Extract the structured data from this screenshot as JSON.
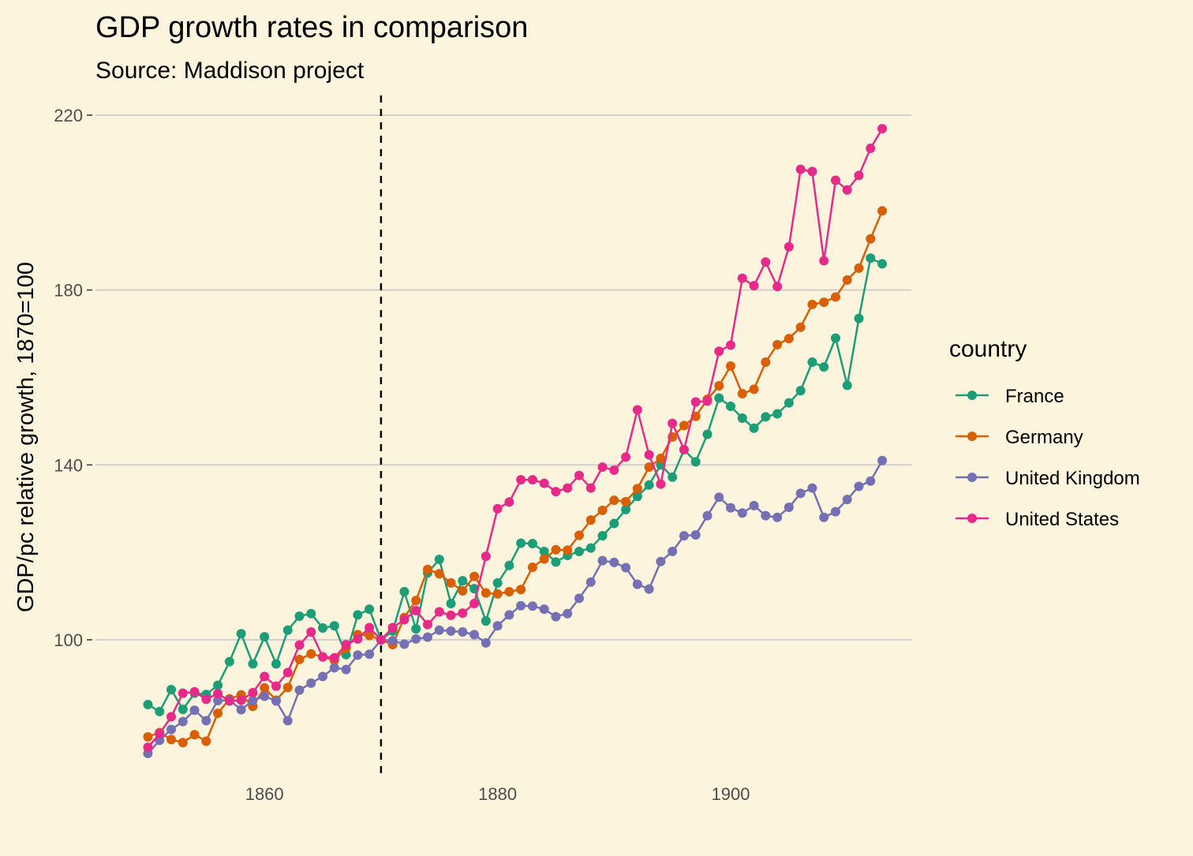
{
  "chart_data": {
    "type": "line",
    "title": "GDP growth rates in comparison",
    "subtitle": "Source: Maddison project",
    "xlabel": "",
    "ylabel": "GDP/pc relative growth, 1870=100",
    "xlim": [
      1845.5,
      1915.5
    ],
    "ylim": [
      69.5,
      224.5
    ],
    "xticks": [
      1860,
      1880,
      1900
    ],
    "yticks": [
      100,
      140,
      180,
      220
    ],
    "grid": "horizontal major lines",
    "reference_line": {
      "x": 1870,
      "style": "dashed"
    },
    "legend": {
      "title": "country",
      "position": "right"
    },
    "x": [
      1850,
      1851,
      1852,
      1853,
      1854,
      1855,
      1856,
      1857,
      1858,
      1859,
      1860,
      1861,
      1862,
      1863,
      1864,
      1865,
      1866,
      1867,
      1868,
      1869,
      1870,
      1871,
      1872,
      1873,
      1874,
      1875,
      1876,
      1877,
      1878,
      1879,
      1880,
      1881,
      1882,
      1883,
      1884,
      1885,
      1886,
      1887,
      1888,
      1889,
      1890,
      1891,
      1892,
      1893,
      1894,
      1895,
      1896,
      1897,
      1898,
      1899,
      1900,
      1901,
      1902,
      1903,
      1904,
      1905,
      1906,
      1907,
      1908,
      1909,
      1910,
      1911,
      1912,
      1913
    ],
    "series": [
      {
        "name": "France",
        "color": "#1b9e77",
        "values": [
          85.2,
          83.6,
          88.6,
          84.1,
          87.8,
          87.5,
          89.6,
          95.0,
          101.4,
          94.5,
          100.7,
          94.5,
          102.2,
          105.4,
          106.0,
          102.7,
          103.2,
          96.6,
          105.7,
          107.0,
          100.0,
          102.0,
          111.0,
          102.5,
          115.3,
          118.4,
          108.3,
          113.5,
          111.7,
          104.3,
          113.0,
          117.0,
          122.1,
          122.0,
          120.2,
          117.8,
          119.3,
          120.2,
          121.0,
          123.8,
          126.6,
          129.8,
          132.8,
          135.4,
          140.0,
          137.2,
          143.5,
          140.7,
          147.0,
          155.3,
          153.4,
          150.7,
          148.4,
          151.0,
          151.7,
          154.2,
          157.0,
          163.5,
          162.4,
          169.0,
          158.2,
          173.5,
          187.3,
          186.0
        ]
      },
      {
        "name": "Germany",
        "color": "#d95f02",
        "values": [
          77.8,
          78.8,
          77.2,
          76.5,
          78.3,
          76.8,
          83.2,
          86.5,
          87.4,
          84.8,
          89.0,
          86.2,
          89.1,
          95.5,
          96.8,
          96.1,
          95.3,
          98.1,
          101.2,
          101.0,
          100.0,
          98.9,
          105.1,
          109.0,
          116.1,
          115.1,
          113.0,
          111.2,
          114.5,
          110.7,
          110.5,
          111.0,
          111.5,
          116.6,
          118.5,
          120.6,
          120.5,
          123.9,
          127.4,
          129.6,
          131.9,
          131.6,
          134.6,
          139.5,
          141.5,
          146.4,
          149.0,
          151.1,
          155.0,
          158.1,
          162.6,
          156.3,
          157.3,
          163.5,
          167.5,
          168.9,
          171.5,
          176.7,
          177.2,
          178.4,
          182.3,
          185.0,
          191.7,
          198.1
        ]
      },
      {
        "name": "United Kingdom",
        "color": "#7570b3",
        "values": [
          74.0,
          77.0,
          79.5,
          81.3,
          83.9,
          81.5,
          86.1,
          86.2,
          84.0,
          86.1,
          87.1,
          86.0,
          81.5,
          88.5,
          90.1,
          91.6,
          93.6,
          93.2,
          96.5,
          96.7,
          100.0,
          99.8,
          99.0,
          100.2,
          100.6,
          102.2,
          102.0,
          101.8,
          101.2,
          99.3,
          103.2,
          105.7,
          107.8,
          107.7,
          107.0,
          105.3,
          106.0,
          109.5,
          113.2,
          118.1,
          117.7,
          116.5,
          112.7,
          111.6,
          117.9,
          120.2,
          123.8,
          124.0,
          128.4,
          132.6,
          130.2,
          129.0,
          130.7,
          128.4,
          128.0,
          130.3,
          133.5,
          134.7,
          128.0,
          129.3,
          132.1,
          135.1,
          136.3,
          141.0
        ]
      },
      {
        "name": "United States",
        "color": "#e7298a",
        "values": [
          75.4,
          78.5,
          82.4,
          87.8,
          88.1,
          86.4,
          87.7,
          86.0,
          86.2,
          87.9,
          91.6,
          89.4,
          92.5,
          98.8,
          101.8,
          96.1,
          95.9,
          98.9,
          100.2,
          102.8,
          100.0,
          102.8,
          104.6,
          106.7,
          103.5,
          106.4,
          105.6,
          106.1,
          108.3,
          119.1,
          130.0,
          131.5,
          136.6,
          136.6,
          135.8,
          133.9,
          134.7,
          137.6,
          134.7,
          139.5,
          138.8,
          141.8,
          152.6,
          142.3,
          135.6,
          149.5,
          143.5,
          154.4,
          154.6,
          166.0,
          167.4,
          182.7,
          181.0,
          186.4,
          180.8,
          189.9,
          207.6,
          207.1,
          186.7,
          205.1,
          202.9,
          206.2,
          212.4,
          216.9
        ]
      }
    ]
  }
}
